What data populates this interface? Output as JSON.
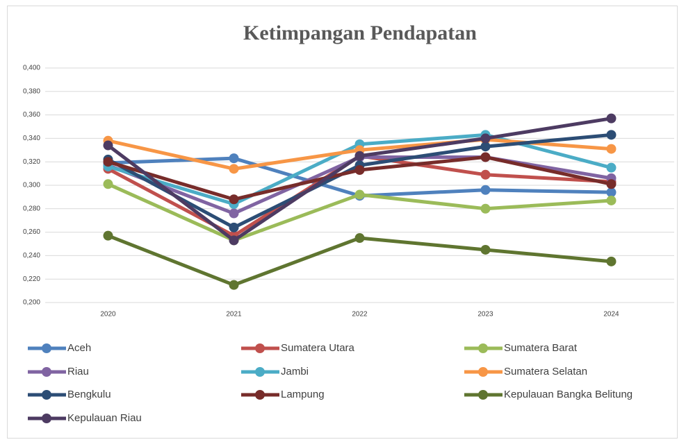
{
  "chart_data": {
    "type": "line",
    "title": "Ketimpangan Pendapatan",
    "categories": [
      "2020",
      "2021",
      "2022",
      "2023",
      "2024"
    ],
    "ylim": [
      0.2,
      0.4
    ],
    "yticks": [
      {
        "value": 0.2,
        "label": "0,200"
      },
      {
        "value": 0.22,
        "label": "0,220"
      },
      {
        "value": 0.24,
        "label": "0,240"
      },
      {
        "value": 0.26,
        "label": "0,260"
      },
      {
        "value": 0.28,
        "label": "0,280"
      },
      {
        "value": 0.3,
        "label": "0,300"
      },
      {
        "value": 0.32,
        "label": "0,320"
      },
      {
        "value": 0.34,
        "label": "0,340"
      },
      {
        "value": 0.36,
        "label": "0,360"
      },
      {
        "value": 0.38,
        "label": "0,380"
      },
      {
        "value": 0.4,
        "label": "0,400"
      }
    ],
    "grid": true,
    "legend": "bottom",
    "series": [
      {
        "name": "Aceh",
        "color": "#4f81bd",
        "values": [
          0.319,
          0.323,
          0.291,
          0.296,
          0.294
        ]
      },
      {
        "name": "Sumatera Utara",
        "color": "#c0504d",
        "values": [
          0.314,
          0.257,
          0.325,
          0.309,
          0.303
        ]
      },
      {
        "name": "Sumatera Barat",
        "color": "#9bbb59",
        "values": [
          0.301,
          0.253,
          0.292,
          0.28,
          0.287
        ]
      },
      {
        "name": "Riau",
        "color": "#8064a2",
        "values": [
          0.317,
          0.276,
          0.324,
          0.324,
          0.306
        ]
      },
      {
        "name": "Jambi",
        "color": "#4bacc6",
        "values": [
          0.316,
          0.284,
          0.335,
          0.343,
          0.315
        ]
      },
      {
        "name": "Sumatera Selatan",
        "color": "#f79646",
        "values": [
          0.338,
          0.314,
          0.33,
          0.339,
          0.331
        ]
      },
      {
        "name": "Bengkulu",
        "color": "#2c4d75",
        "values": [
          0.322,
          0.264,
          0.317,
          0.333,
          0.343
        ]
      },
      {
        "name": "Lampung",
        "color": "#772c2a",
        "values": [
          0.32,
          0.288,
          0.313,
          0.324,
          0.301
        ]
      },
      {
        "name": "Kepulauan Bangka Belitung",
        "color": "#5f7530",
        "values": [
          0.257,
          0.215,
          0.255,
          0.245,
          0.235
        ]
      },
      {
        "name": "Kepulauan Riau",
        "color": "#4d3b62",
        "values": [
          0.334,
          0.253,
          0.325,
          0.34,
          0.357
        ]
      }
    ]
  }
}
